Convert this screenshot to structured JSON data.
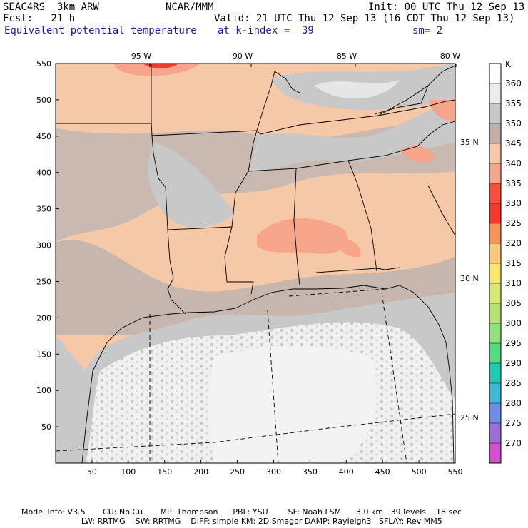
{
  "header": {
    "model": "SEAC4RS  3km ARW",
    "org": "NCAR/MMM",
    "init": "Init: 00 UTC Thu 12 Sep 13",
    "fcst": "Fcst:   21 h",
    "valid": "Valid: 21 UTC Thu 12 Sep 13 (16 CDT Thu 12 Sep 13)",
    "field": "Equivalent potential temperature",
    "level": "at k-index =  39",
    "smooth": "sm= 2"
  },
  "axes": {
    "x_ticks": [
      "50",
      "100",
      "150",
      "200",
      "250",
      "300",
      "350",
      "400",
      "450",
      "500",
      "550"
    ],
    "y_ticks": [
      "50",
      "100",
      "150",
      "200",
      "250",
      "300",
      "350",
      "400",
      "450",
      "500",
      "550"
    ],
    "lon_labels": [
      "95 W",
      "90 W",
      "85 W",
      "80 W"
    ],
    "lat_labels": [
      "35 N",
      "30 N",
      "25 N"
    ]
  },
  "colorbar": {
    "unit": "K",
    "levels": [
      "360",
      "355",
      "350",
      "345",
      "340",
      "335",
      "330",
      "325",
      "320",
      "315",
      "310",
      "305",
      "300",
      "295",
      "290",
      "285",
      "280",
      "275",
      "270"
    ],
    "colors": [
      "#ffffff",
      "#ececec",
      "#c8c8c8",
      "#c0b0a8",
      "#f7c9a8",
      "#f6a58a",
      "#f74f3c",
      "#f2382f",
      "#f5955a",
      "#fbc97a",
      "#f7e86c",
      "#d9e672",
      "#b9e274",
      "#8fe37a",
      "#52dc80",
      "#21c9b4",
      "#3fb8d8",
      "#6e8be5",
      "#9a6fd6",
      "#d54fd2"
    ]
  },
  "footer": {
    "line1": "Model Info: V3.5       CU: No Cu       MP: Thompson      PBL: YSU        SF: Noah LSM      3.0 km   39 levels    18 sec",
    "line2": "                        LW: RRTMG    SW: RRTMG    DIFF: simple KM: 2D Smagor DAMP: Rayleigh3   SFLAY: Rev MM5"
  }
}
